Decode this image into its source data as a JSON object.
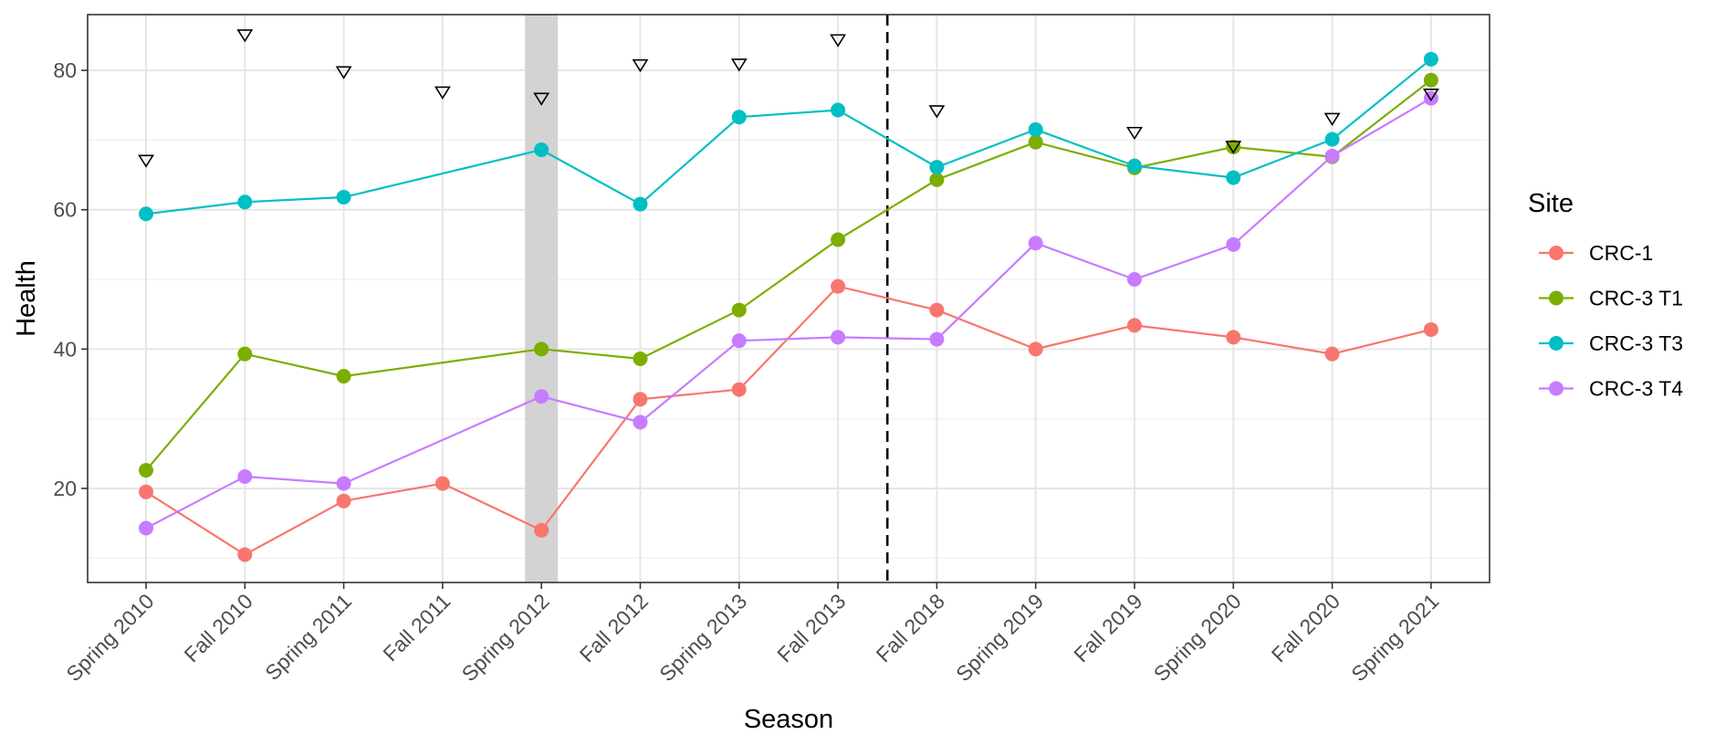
{
  "chart_data": {
    "type": "line",
    "xlabel": "Season",
    "ylabel": "Health",
    "categories": [
      "Spring 2010",
      "Fall 2010",
      "Spring 2011",
      "Fall 2011",
      "Spring 2012",
      "Fall 2012",
      "Spring 2013",
      "Fall 2013",
      "Fall 2018",
      "Spring 2019",
      "Fall 2019",
      "Spring 2020",
      "Fall 2020",
      "Spring 2021"
    ],
    "ylim": [
      6.5,
      88
    ],
    "yticks": [
      20,
      40,
      60,
      80
    ],
    "grid": true,
    "legend": {
      "title": "Site",
      "position": "right"
    },
    "series": [
      {
        "name": "CRC-1",
        "color": "#F8766D",
        "values": [
          19.5,
          10.5,
          18.2,
          20.7,
          14.0,
          32.8,
          34.2,
          49.0,
          45.6,
          40.0,
          43.4,
          41.7,
          39.3,
          42.8
        ]
      },
      {
        "name": "CRC-3 T1",
        "color": "#7CAE00",
        "values": [
          22.6,
          39.3,
          36.1,
          null,
          40.0,
          38.6,
          45.6,
          55.7,
          64.3,
          69.7,
          66.0,
          69.0,
          67.6,
          78.6
        ]
      },
      {
        "name": "CRC-3 T3",
        "color": "#00BFC4",
        "values": [
          59.4,
          61.1,
          61.8,
          null,
          68.6,
          60.8,
          73.3,
          74.3,
          66.1,
          71.5,
          66.3,
          64.6,
          70.1,
          81.6
        ]
      },
      {
        "name": "CRC-3 T4",
        "color": "#C77CFF",
        "values": [
          14.3,
          21.7,
          20.7,
          null,
          33.2,
          29.5,
          41.2,
          41.7,
          41.4,
          55.2,
          50.0,
          55.0,
          67.7,
          76.0
        ]
      }
    ],
    "triangle_markers": [
      67.0,
      85.0,
      79.7,
      76.8,
      75.9,
      80.7,
      80.8,
      84.3,
      74.1,
      null,
      71.0,
      69.0,
      73.0,
      76.5
    ],
    "highlight_band_category": "Spring 2012",
    "divider_between": [
      "Fall 2013",
      "Fall 2018"
    ]
  }
}
